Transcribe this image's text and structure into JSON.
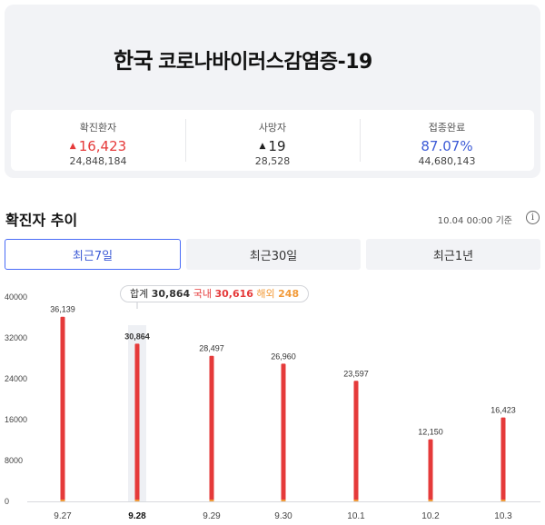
{
  "hero": {
    "country": "한국",
    "disease": "코로나바이러스감염증-19"
  },
  "stats": [
    {
      "label": "확진환자",
      "delta": "16,423",
      "total": "24,848,184",
      "color": "#e53a3a"
    },
    {
      "label": "사망자",
      "delta": "19",
      "total": "28,528",
      "color": "#222222"
    },
    {
      "label": "접종완료",
      "delta": "87.07%",
      "total": "44,680,143",
      "color": "#3d5bd6"
    }
  ],
  "trend": {
    "title": "확진자 추이",
    "updated": "10.04 00:00 기준",
    "info_icon": "info-icon"
  },
  "tabs": [
    {
      "label": "최근7일",
      "active": true
    },
    {
      "label": "최근30일",
      "active": false
    },
    {
      "label": "최근1년",
      "active": false
    }
  ],
  "tooltip": {
    "total_label": "합계",
    "total_value": "30,864",
    "domestic_label": "국내",
    "domestic_value": "30,616",
    "overseas_label": "해외",
    "overseas_value": "248"
  },
  "colors": {
    "domestic": "#e53a3a",
    "overseas": "#f29a38",
    "accent": "#3d5bd6"
  },
  "chart_data": {
    "type": "bar",
    "categories": [
      "9.27",
      "9.28",
      "9.29",
      "9.30",
      "10.1",
      "10.2",
      "10.3"
    ],
    "values": [
      36139,
      30864,
      28497,
      26960,
      23597,
      12150,
      16423
    ],
    "value_labels": [
      "36,139",
      "30,864",
      "28,497",
      "26,960",
      "23,597",
      "12,150",
      "16,423"
    ],
    "y_ticks": [
      0,
      8000,
      16000,
      24000,
      32000,
      40000
    ],
    "ylim": [
      0,
      40000
    ],
    "highlighted_index": 1,
    "grid": false
  }
}
